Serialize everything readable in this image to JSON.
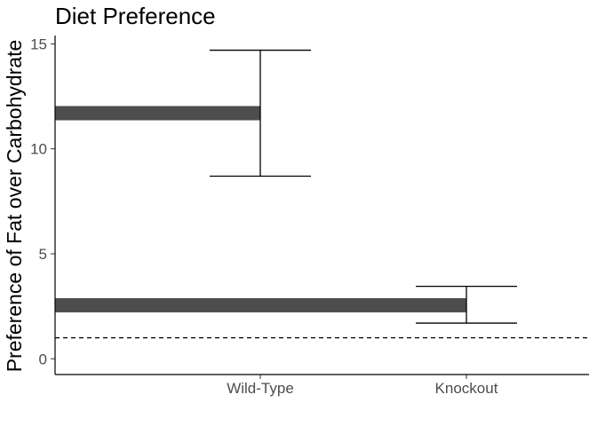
{
  "chart_data": {
    "type": "bar",
    "orientation": "horizontal-from-y-axis",
    "title": "Diet Preference",
    "xlabel": "",
    "ylabel": "Preference of Fat over Carbohydrate",
    "categories": [
      "Wild-Type",
      "Knockout"
    ],
    "values": [
      11.7,
      2.55
    ],
    "error_bars": [
      {
        "category": "Wild-Type",
        "low": 8.7,
        "high": 14.7
      },
      {
        "category": "Knockout",
        "low": 1.7,
        "high": 3.45
      }
    ],
    "reference_line": {
      "y": 1,
      "style": "dashed"
    },
    "ylim": [
      -0.75,
      15.4
    ],
    "yticks": [
      0,
      5,
      10,
      15
    ],
    "grid": false,
    "colors": {
      "bar": "#4d4d4d",
      "errorbar": "#000000",
      "axis": "#000000",
      "tick_text": "#4d4d4d"
    }
  }
}
